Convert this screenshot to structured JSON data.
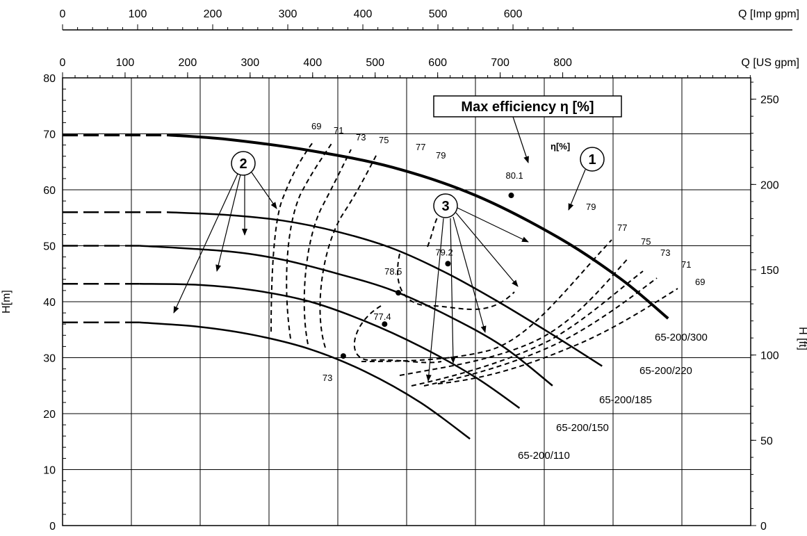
{
  "chart_data": {
    "type": "line",
    "title": "",
    "axes": {
      "x_bottom": {
        "label": "",
        "range": [
          0,
          250
        ],
        "ticks": []
      },
      "x_top_us": {
        "label": "Q [US gpm]",
        "range": [
          0,
          1100.7
        ],
        "ticks": [
          0,
          100,
          200,
          300,
          400,
          500,
          600,
          700,
          800
        ]
      },
      "x_top_imp": {
        "label": "Q [Imp gpm]",
        "range": [
          0,
          916.6
        ],
        "ticks": [
          0,
          100,
          200,
          300,
          400,
          500,
          600
        ]
      },
      "y_left": {
        "label": "H[m]",
        "range": [
          0,
          80
        ],
        "ticks": [
          0,
          10,
          20,
          30,
          40,
          50,
          60,
          70,
          80
        ]
      },
      "y_right": {
        "label": "H [ft]",
        "range": [
          0,
          262.5
        ],
        "ticks": [
          0,
          50,
          100,
          150,
          200,
          250
        ]
      }
    },
    "grid": true,
    "series": [
      {
        "name": "65-200/300",
        "dashed_x": [
          0,
          38
        ],
        "x": [
          38,
          60,
          90,
          120,
          150,
          180,
          203,
          220
        ],
        "y": [
          69.8,
          69,
          67,
          64,
          59,
          51.5,
          44,
          37
        ]
      },
      {
        "name": "65-200/220",
        "dashed_x": [
          0,
          38
        ],
        "x": [
          38,
          60,
          80,
          100,
          120,
          140,
          160,
          180,
          196
        ],
        "y": [
          56,
          55.5,
          54.5,
          52.5,
          49.5,
          45,
          39.5,
          33.5,
          28.5
        ]
      },
      {
        "name": "65-200/185",
        "dashed_x": [
          0,
          28
        ],
        "x": [
          28,
          60,
          80,
          100,
          120,
          140,
          160,
          178
        ],
        "y": [
          50,
          49,
          47.5,
          45,
          42,
          37.5,
          32,
          25
        ]
      },
      {
        "name": "65-200/150",
        "dashed_x": [
          0,
          28
        ],
        "x": [
          28,
          50,
          70,
          90,
          110,
          130,
          150,
          166
        ],
        "y": [
          43.2,
          43,
          42,
          40,
          36.5,
          32,
          26.5,
          21
        ]
      },
      {
        "name": "65-200/110",
        "dashed_x": [
          0,
          28
        ],
        "x": [
          28,
          50,
          70,
          90,
          110,
          130,
          148
        ],
        "y": [
          36.3,
          35.5,
          34,
          31.5,
          27.5,
          22,
          15.5
        ]
      }
    ],
    "bep_points": [
      {
        "label": "80.1",
        "x": 163,
        "y": 59
      },
      {
        "label": "79.2",
        "x": 140,
        "y": 46.8
      },
      {
        "label": "78.5",
        "x": 122,
        "y": 41.6
      },
      {
        "label": "77.4",
        "x": 117,
        "y": 36
      },
      {
        "label": "73",
        "x": 102,
        "y": 30.3
      }
    ],
    "efficiency_labels_top": [
      "69",
      "71",
      "73",
      "75",
      "77",
      "79"
    ],
    "efficiency_labels_right": [
      "79",
      "77",
      "75",
      "73",
      "71",
      "69"
    ],
    "annotations": {
      "max_efficiency_box": "Max efficiency η [%]",
      "eta_label": "η[%]",
      "callout_1": "1",
      "callout_2": "2",
      "callout_3": "3"
    }
  }
}
